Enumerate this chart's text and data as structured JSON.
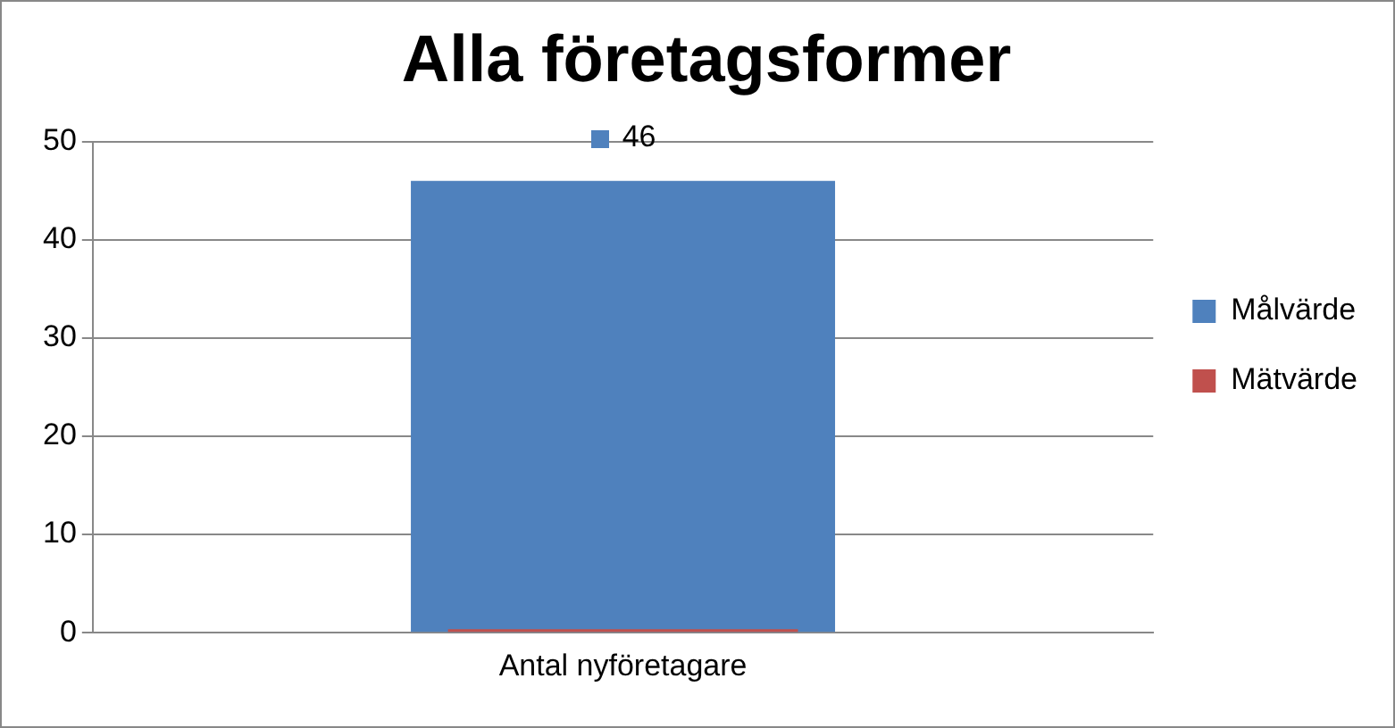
{
  "chart_data": {
    "type": "bar",
    "title": "Alla företagsformer",
    "categories": [
      "Antal nyföretagare"
    ],
    "series": [
      {
        "name": "Målvärde",
        "color": "#4f81bd",
        "values": [
          46
        ],
        "value_labels": [
          "46"
        ]
      },
      {
        "name": "Mätvärde",
        "color": "#c0504d",
        "values": [
          0
        ],
        "value_labels": [
          null
        ]
      }
    ],
    "ylim": [
      0,
      50
    ],
    "yticks": [
      0,
      10,
      20,
      30,
      40,
      50
    ],
    "grid": "y",
    "legend": "right"
  }
}
